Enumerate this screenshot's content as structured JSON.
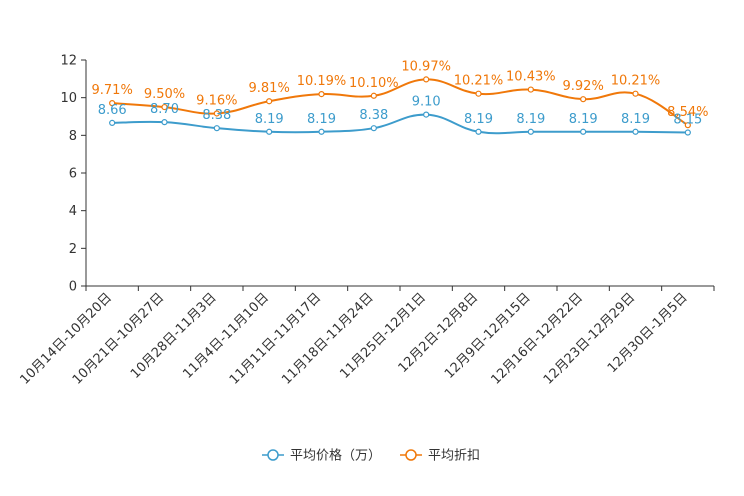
{
  "chart_data": {
    "type": "line",
    "title": "",
    "xlabel": "",
    "ylabel": "",
    "ylim": [
      0,
      12
    ],
    "yticks": [
      0,
      2,
      4,
      6,
      8,
      10,
      12
    ],
    "grid": false,
    "legend_position": "bottom",
    "categories": [
      "10月14日-10月20日",
      "10月21日-10月27日",
      "10月28日-11月3日",
      "11月4日-11月10日",
      "11月11日-11月17日",
      "11月18日-11月24日",
      "11月25日-12月1日",
      "12月2日-12月8日",
      "12月9日-12月15日",
      "12月16日-12月22日",
      "12月23日-12月29日",
      "12月30日-1月5日"
    ],
    "series": [
      {
        "name": "平均价格（万）",
        "color": "#3d9ccc",
        "values": [
          8.66,
          8.7,
          8.38,
          8.19,
          8.19,
          8.38,
          9.1,
          8.19,
          8.19,
          8.19,
          8.19,
          8.15
        ],
        "labels": [
          "8.66",
          "8.70",
          "8.38",
          "8.19",
          "8.19",
          "8.38",
          "9.10",
          "8.19",
          "8.19",
          "8.19",
          "8.19",
          "8.15"
        ]
      },
      {
        "name": "平均折扣",
        "color": "#f0780a",
        "values": [
          9.71,
          9.5,
          9.16,
          9.81,
          10.19,
          10.1,
          10.97,
          10.21,
          10.43,
          9.92,
          10.21,
          8.54
        ],
        "labels": [
          "9.71%",
          "9.50%",
          "9.16%",
          "9.81%",
          "10.19%",
          "10.10%",
          "10.97%",
          "10.21%",
          "10.43%",
          "9.92%",
          "10.21%",
          "8.54%"
        ]
      }
    ]
  }
}
